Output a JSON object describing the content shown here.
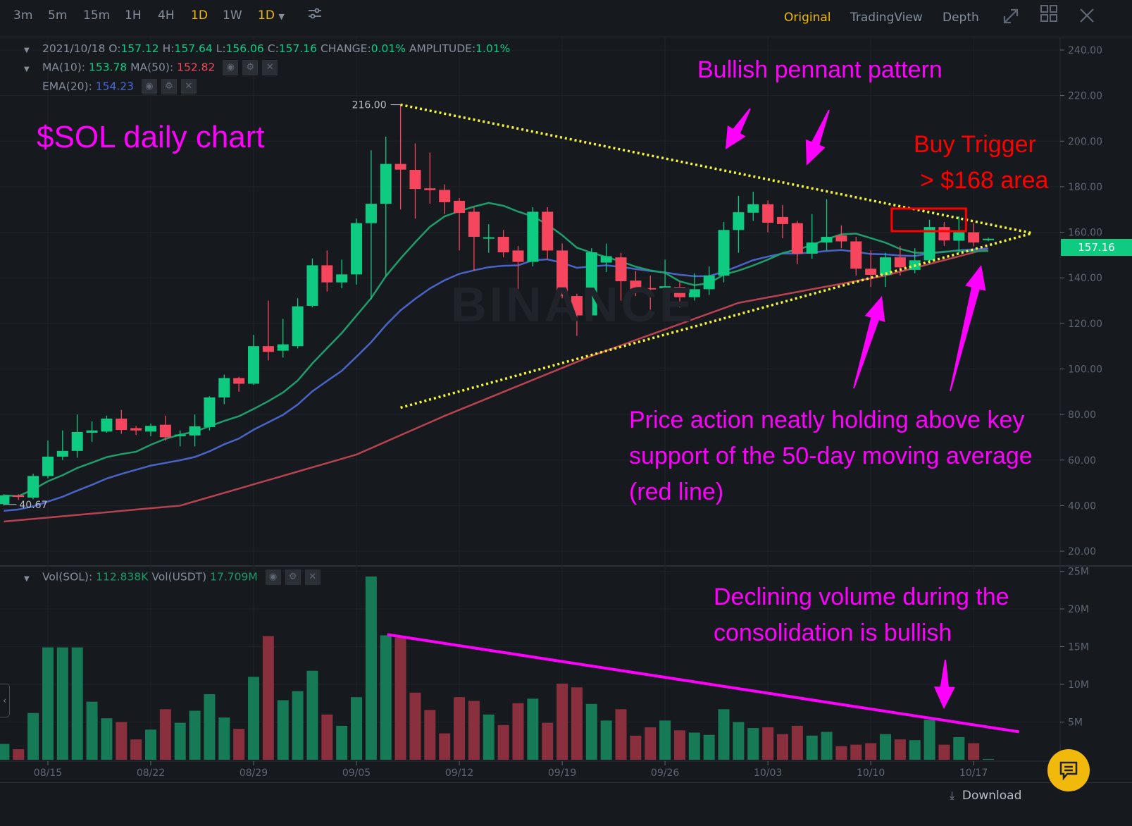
{
  "toolbar": {
    "intervals": [
      {
        "label": "3m",
        "active": false
      },
      {
        "label": "5m",
        "active": false
      },
      {
        "label": "15m",
        "active": false
      },
      {
        "label": "1H",
        "active": false
      },
      {
        "label": "4H",
        "active": false
      },
      {
        "label": "1D",
        "active": true
      },
      {
        "label": "1W",
        "active": false
      }
    ],
    "interval_dropdown": "1D",
    "views": [
      {
        "label": "Original",
        "active": true
      },
      {
        "label": "TradingView",
        "active": false
      },
      {
        "label": "Depth",
        "active": false
      }
    ],
    "icons": [
      "settings-sliders-icon",
      "expand-icon",
      "grid-layout-icon",
      "close-icon"
    ]
  },
  "legend": {
    "date": "2021/10/18",
    "o_label": "O:",
    "o": "157.12",
    "h_label": "H:",
    "h": "157.64",
    "l_label": "L:",
    "l": "156.06",
    "c_label": "C:",
    "c": "157.16",
    "change_label": "CHANGE:",
    "change": "0.01%",
    "amplitude_label": "AMPLITUDE:",
    "amplitude": "1.01%",
    "ma10_label": "MA(10):",
    "ma10": "153.78",
    "ma50_label": "MA(50):",
    "ma50": "152.82",
    "ema20_label": "EMA(20):",
    "ema20": "154.23",
    "vol_sol_label": "Vol(SOL):",
    "vol_sol": "112.838K",
    "vol_usdt_label": "Vol(USDT)",
    "vol_usdt": "17.709M"
  },
  "watermark": "BINANCE",
  "annotations": {
    "title": "$SOL daily chart",
    "pennant": "Bullish pennant pattern",
    "buy_trigger_1": "Buy Trigger",
    "buy_trigger_2": "> $168 area",
    "support_1": "Price action neatly holding above key",
    "support_2": "support of the 50-day moving average",
    "support_3": "(red line)",
    "volume_1": "Declining volume during the",
    "volume_2": "consolidation is bullish"
  },
  "current_price": "157.16",
  "footer": {
    "download": "Download"
  },
  "colors": {
    "background": "#161a1e",
    "up": "#0ecb81",
    "down": "#f6465d",
    "vol_up": "#157a55",
    "vol_down": "#8a2f3d",
    "ma10": "#1e9e6a",
    "ma50": "#b8424f",
    "ema20": "#4a63c8",
    "trendline": "#f5f53a",
    "annotation": "#ff00ff",
    "buy_box": "#ff0000"
  },
  "chart_data": {
    "type": "candlestick",
    "symbol": "SOL/USDT",
    "interval": "1D",
    "price_axis": {
      "ticks": [
        "240.00",
        "220.00",
        "200.00",
        "180.00",
        "160.00",
        "140.00",
        "120.00",
        "100.00",
        "80.00",
        "60.00",
        "40.00",
        "20.00"
      ],
      "range": [
        20,
        240
      ]
    },
    "volume_axis": {
      "ticks": [
        "25M",
        "20M",
        "15M",
        "10M",
        "5M"
      ],
      "range": [
        0,
        25
      ]
    },
    "x_ticks": [
      "08/15",
      "08/22",
      "08/29",
      "09/05",
      "09/12",
      "09/19",
      "09/26",
      "10/03",
      "10/10",
      "10/17"
    ],
    "high_marker": "216.00",
    "low_marker": "40.67",
    "columns": [
      "date",
      "open",
      "high",
      "low",
      "close",
      "volume_M"
    ],
    "candles": [
      [
        "08/12",
        40.7,
        45,
        40,
        44.5,
        2.1
      ],
      [
        "08/13",
        44.5,
        45,
        42.5,
        43.8,
        1.4
      ],
      [
        "08/14",
        43.5,
        54,
        42.8,
        53,
        6.2
      ],
      [
        "08/15",
        53,
        68.6,
        52,
        61.5,
        14.9
      ],
      [
        "08/16",
        61.5,
        73,
        60,
        64,
        14.9
      ],
      [
        "08/17",
        64,
        80,
        61,
        72.3,
        14.9
      ],
      [
        "08/18",
        72,
        77,
        68,
        73,
        7.7
      ],
      [
        "08/19",
        72.5,
        79.5,
        72,
        78.2,
        5.5
      ],
      [
        "08/20",
        78.2,
        82,
        71.5,
        73.2,
        5.0
      ],
      [
        "08/21",
        74,
        75,
        71,
        73,
        2.7
      ],
      [
        "08/22",
        72.5,
        76,
        70.5,
        75,
        4.0
      ],
      [
        "08/23",
        75.5,
        79.5,
        68.5,
        70,
        6.7
      ],
      [
        "08/24",
        70.5,
        73,
        66,
        71.2,
        4.9
      ],
      [
        "08/25",
        70.8,
        80,
        66,
        74.8,
        6.5
      ],
      [
        "08/26",
        74.5,
        88,
        73,
        87.5,
        8.7
      ],
      [
        "08/27",
        87.5,
        97.5,
        84.5,
        96,
        5.6
      ],
      [
        "08/28",
        96,
        96.5,
        90,
        93.5,
        4.1
      ],
      [
        "08/29",
        93.5,
        115,
        93,
        110,
        11.0
      ],
      [
        "08/30",
        110,
        130,
        103.7,
        107.5,
        16.4
      ],
      [
        "08/31",
        108,
        122,
        105,
        110.8,
        7.9
      ],
      [
        "09/01",
        110,
        131,
        109,
        127.5,
        9.1
      ],
      [
        "09/02",
        127.7,
        148.5,
        127,
        145.5,
        11.8
      ],
      [
        "09/03",
        145.5,
        152,
        134,
        138,
        6.0
      ],
      [
        "09/04",
        138,
        148,
        135.4,
        141.5,
        4.5
      ],
      [
        "09/05",
        141.5,
        166,
        137,
        164,
        8.3
      ],
      [
        "09/06",
        164,
        196,
        130.5,
        172.5,
        24.3
      ],
      [
        "09/07",
        172.5,
        202,
        140.6,
        190,
        16.5
      ],
      [
        "09/08",
        190,
        216,
        170,
        187.5,
        16.2
      ],
      [
        "09/09",
        187.4,
        199,
        166,
        179,
        8.9
      ],
      [
        "09/10",
        179.3,
        195,
        172.5,
        178.5,
        6.6
      ],
      [
        "09/11",
        178.6,
        181,
        168,
        173.2,
        3.5
      ],
      [
        "09/12",
        173.8,
        175,
        152,
        168.5,
        8.3
      ],
      [
        "09/13",
        169,
        171,
        143,
        158,
        7.8
      ],
      [
        "09/14",
        157.5,
        163.5,
        151,
        157.8,
        6.0
      ],
      [
        "09/15",
        158,
        161,
        149,
        151.2,
        4.6
      ],
      [
        "09/16",
        152,
        154,
        135,
        147,
        7.5
      ],
      [
        "09/17",
        147,
        171,
        145,
        169,
        8.1
      ],
      [
        "09/18",
        169,
        171,
        148,
        152,
        4.9
      ],
      [
        "09/19",
        152,
        155,
        131,
        132,
        10.1
      ],
      [
        "09/20",
        132,
        133,
        114.5,
        123.5,
        9.6
      ],
      [
        "09/21",
        123.5,
        153,
        121.6,
        151.2,
        7.4
      ],
      [
        "09/22",
        146.7,
        155,
        142.5,
        149.5,
        5.2
      ],
      [
        "09/23",
        149,
        151,
        130,
        138.5,
        6.7
      ],
      [
        "09/24",
        138.8,
        143,
        132,
        135,
        3.2
      ],
      [
        "09/25",
        135.5,
        141,
        126,
        135,
        4.3
      ],
      [
        "09/26",
        135.5,
        148,
        130,
        136.3,
        5.2
      ],
      [
        "09/27",
        136,
        138,
        127,
        131.5,
        3.9
      ],
      [
        "09/28",
        131.5,
        142,
        130,
        135,
        3.6
      ],
      [
        "09/29",
        135,
        145,
        132.5,
        141,
        3.3
      ],
      [
        "09/30",
        141,
        164.5,
        138,
        161,
        6.7
      ],
      [
        "10/01",
        161,
        176,
        151,
        168.8,
        5.0
      ],
      [
        "10/02",
        168.6,
        177.8,
        165,
        172.3,
        4.2
      ],
      [
        "10/03",
        172.3,
        174,
        160,
        164.2,
        4.3
      ],
      [
        "10/04",
        166.7,
        172,
        157.4,
        163.6,
        3.4
      ],
      [
        "10/05",
        164,
        165,
        146,
        150.6,
        4.5
      ],
      [
        "10/06",
        150.6,
        168,
        148.4,
        155.5,
        3.2
      ],
      [
        "10/07",
        155.5,
        174.5,
        152,
        158,
        3.7
      ],
      [
        "10/08",
        158.6,
        163,
        153,
        156,
        1.8
      ],
      [
        "10/09",
        156,
        158,
        141,
        144,
        2.0
      ],
      [
        "10/10",
        144,
        152,
        136,
        141.3,
        2.2
      ],
      [
        "10/11",
        141.3,
        151,
        136,
        149,
        3.4
      ],
      [
        "10/12",
        149,
        154,
        141,
        144.6,
        2.7
      ],
      [
        "10/13",
        143.5,
        153,
        142,
        147.7,
        2.6
      ],
      [
        "10/14",
        147.7,
        165.5,
        146,
        162.3,
        5.3
      ],
      [
        "10/15",
        162.3,
        164.5,
        154,
        156.4,
        2.0
      ],
      [
        "10/16",
        156.3,
        167,
        151,
        160,
        3.0
      ],
      [
        "10/17",
        160,
        164,
        153.8,
        155.5,
        2.2
      ],
      [
        "10/18",
        157.12,
        157.64,
        156.06,
        157.16,
        0.1
      ]
    ],
    "ma50_points": [
      [
        "08/12",
        33
      ],
      [
        "08/24",
        40
      ],
      [
        "09/05",
        62.4
      ],
      [
        "09/11",
        79.4
      ],
      [
        "09/21",
        105.7
      ],
      [
        "10/01",
        129
      ],
      [
        "10/11",
        141
      ],
      [
        "10/18",
        152.82
      ]
    ],
    "ema20_start": 37,
    "trendlines": {
      "upper": {
        "from": [
          "09/08",
          216
        ],
        "to": [
          "10/21",
          159.6
        ]
      },
      "lower": {
        "from": [
          "09/08",
          83
        ],
        "to": [
          "10/21",
          159.6
        ]
      },
      "volume": {
        "from": [
          "09/07",
          16.6
        ],
        "to": [
          "10/20",
          3.7
        ]
      }
    },
    "buy_box": {
      "from_date": "10/12",
      "to_date": "10/16",
      "price_range": [
        160.5,
        170.4
      ]
    }
  }
}
